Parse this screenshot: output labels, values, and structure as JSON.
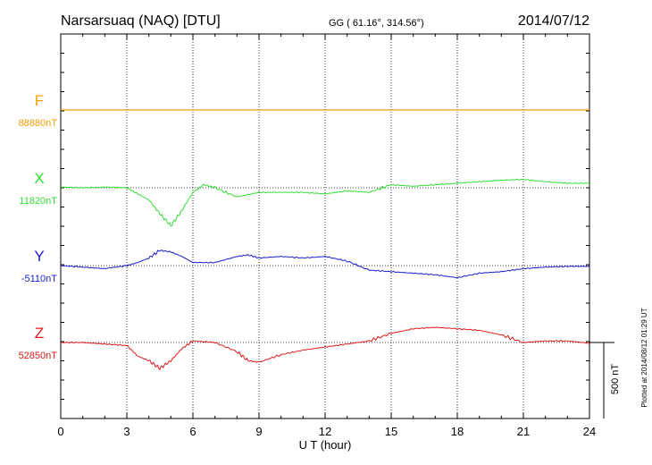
{
  "header": {
    "station": "Narsarsuaq (NAQ)  [DTU]",
    "coords": "GG ( 61.16°, 314.56°)",
    "date": "2014/07/12"
  },
  "footer": {
    "plotted": "Plotted at 2014/08/12 01:29 UT"
  },
  "colors": {
    "F": "#f0a000",
    "X": "#33dd33",
    "Y": "#1a1acc",
    "Z": "#dd1a1a"
  },
  "chart_data": {
    "type": "line",
    "title": "Narsarsuaq (NAQ)  [DTU]",
    "xlabel": "U T (hour)",
    "xlim": [
      0,
      24
    ],
    "x_ticks": [
      0,
      3,
      6,
      9,
      12,
      15,
      18,
      21,
      24
    ],
    "scale_bar": {
      "label": "500 nT",
      "value_nT": 500
    },
    "grid": true,
    "series": [
      {
        "name": "F",
        "baseline_label": "88880nT",
        "baseline_nT": 88880,
        "x": [
          0,
          24
        ],
        "offset_nT": [
          0,
          0
        ]
      },
      {
        "name": "X",
        "baseline_label": "11820nT",
        "baseline_nT": 11820,
        "x": [
          0,
          1,
          2,
          3,
          3.5,
          4,
          4.5,
          5,
          5.5,
          6,
          6.5,
          7,
          8,
          9,
          10,
          11,
          12,
          13,
          14,
          15,
          16,
          17,
          18,
          19,
          20,
          21,
          22,
          23,
          24
        ],
        "offset_nT": [
          5,
          0,
          5,
          0,
          -40,
          -80,
          -170,
          -250,
          -150,
          -30,
          20,
          0,
          -60,
          -30,
          -30,
          -30,
          -40,
          -20,
          -30,
          20,
          10,
          20,
          30,
          40,
          50,
          55,
          40,
          30,
          30
        ]
      },
      {
        "name": "Y",
        "baseline_label": "-5110nT",
        "baseline_nT": -5110,
        "x": [
          0,
          1,
          2,
          3,
          3.5,
          4,
          4.5,
          5,
          5.5,
          6,
          7,
          8,
          8.5,
          9,
          10,
          11,
          12,
          13,
          14,
          15,
          16,
          17,
          18,
          19,
          20,
          21,
          22,
          23,
          24
        ],
        "offset_nT": [
          0,
          -10,
          -20,
          0,
          20,
          50,
          100,
          90,
          60,
          20,
          20,
          60,
          70,
          50,
          60,
          50,
          60,
          30,
          -30,
          -40,
          -50,
          -60,
          -80,
          -50,
          -40,
          -20,
          -10,
          -5,
          -5
        ]
      },
      {
        "name": "Z",
        "baseline_label": "52850nT",
        "baseline_nT": 52850,
        "x": [
          0,
          1,
          2,
          3,
          3.5,
          4,
          4.5,
          5,
          5.5,
          6,
          7,
          8,
          8.5,
          9,
          10,
          11,
          12,
          13,
          14,
          15,
          16,
          17,
          18,
          19,
          20,
          21,
          22,
          23,
          24
        ],
        "offset_nT": [
          0,
          0,
          -10,
          -20,
          -90,
          -120,
          -170,
          -120,
          -40,
          10,
          0,
          -60,
          -120,
          -130,
          -80,
          -50,
          -30,
          -10,
          10,
          60,
          90,
          100,
          90,
          80,
          50,
          0,
          10,
          10,
          -5
        ]
      }
    ]
  }
}
